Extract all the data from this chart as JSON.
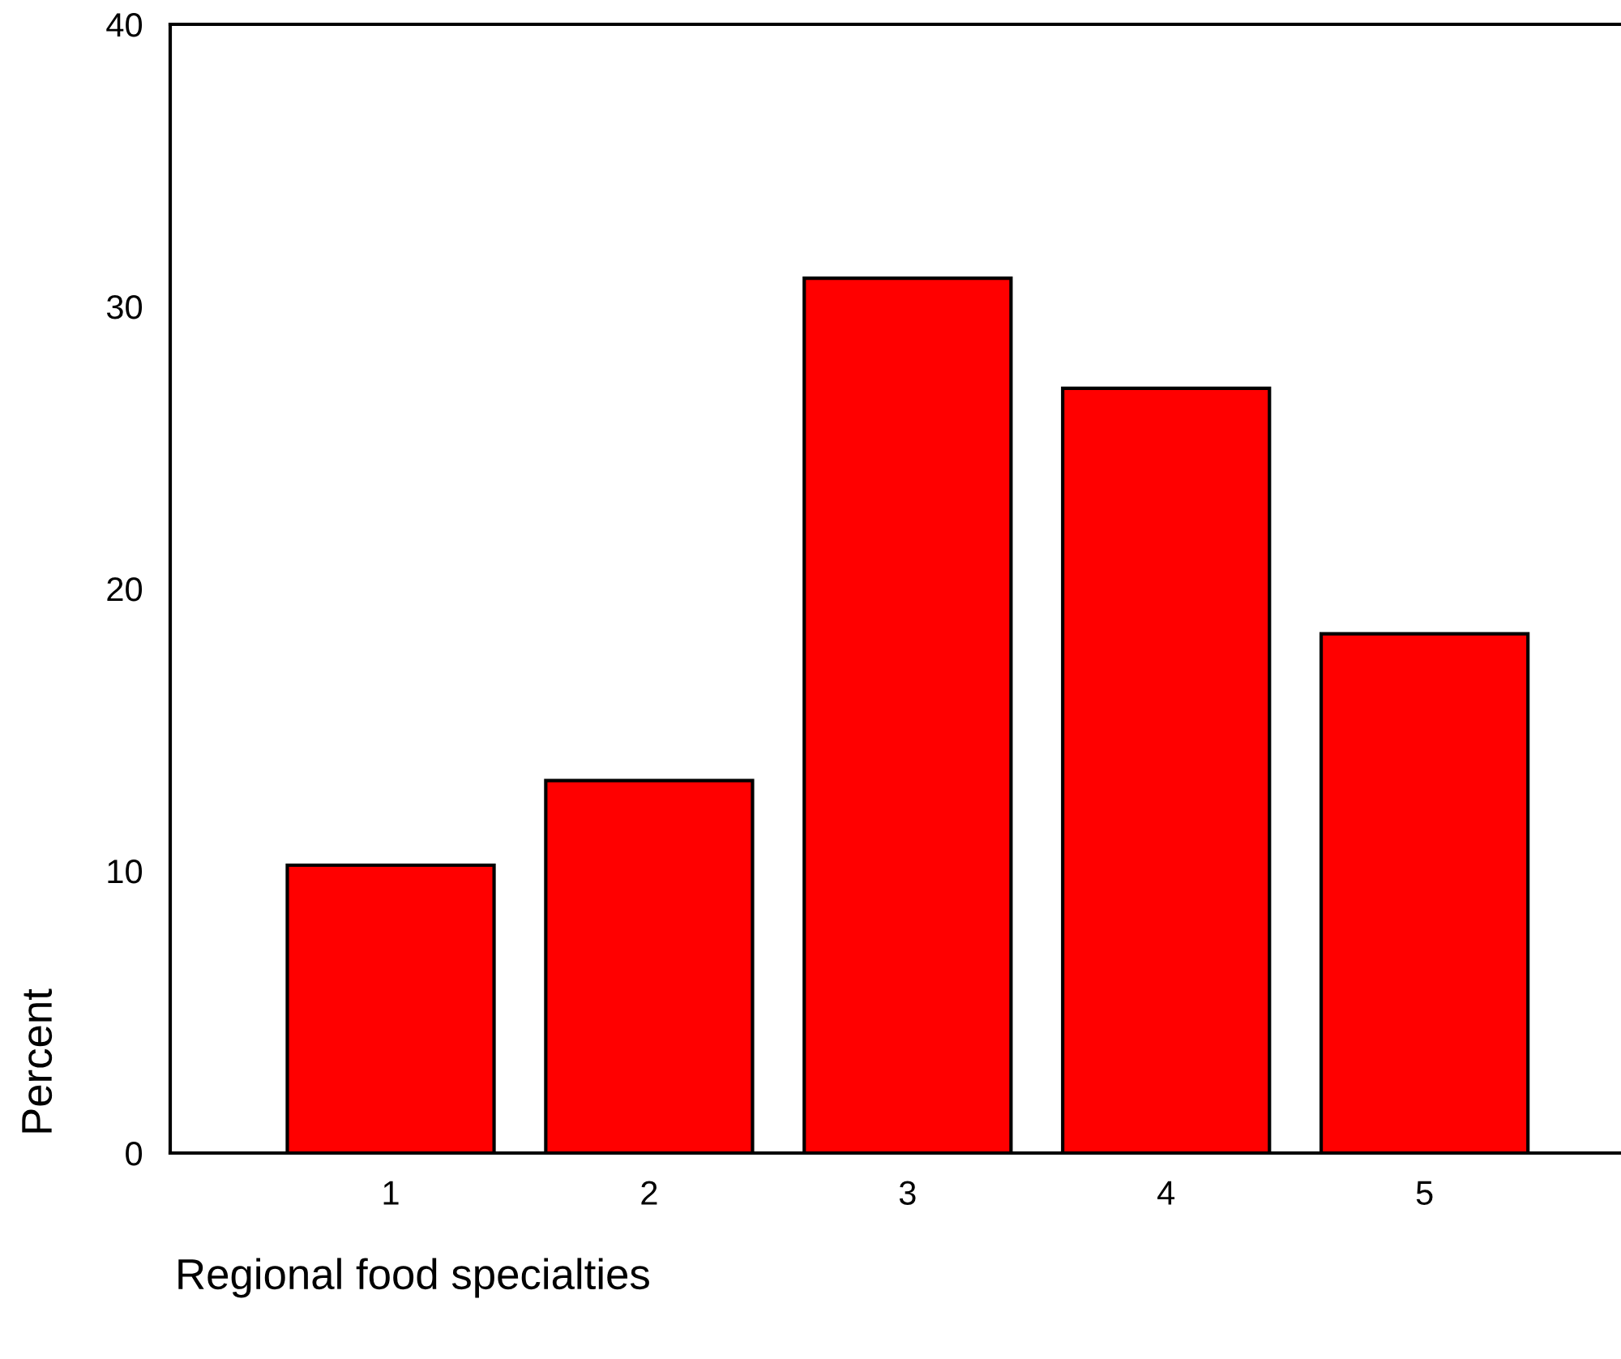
{
  "chart_data": {
    "type": "bar",
    "xlabel": "Regional food specialties",
    "ylabel": "Percent",
    "categories": [
      "1",
      "2",
      "3",
      "4",
      "5"
    ],
    "values": [
      10.2,
      13.2,
      31.0,
      27.1,
      18.4
    ],
    "color": "#ff0000",
    "ylim": [
      0,
      40
    ],
    "yticks": [
      0,
      10,
      20,
      30,
      40
    ],
    "grid": false
  }
}
